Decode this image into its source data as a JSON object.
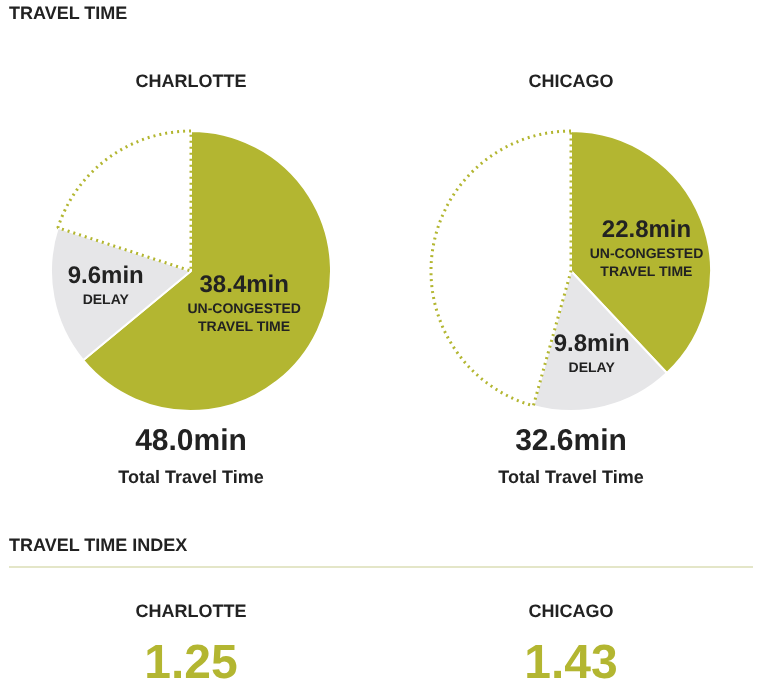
{
  "chart_data": [
    {
      "type": "pie",
      "title": "CHARLOTTE",
      "categories": [
        "UN-CONGESTED TRAVEL TIME",
        "DELAY",
        null
      ],
      "values": [
        38.4,
        9.6,
        12
      ],
      "colors": [
        "#b3b631",
        "#e6e6e8",
        "#ffffff"
      ],
      "value_labels": [
        "38.4min",
        "9.6min",
        null
      ],
      "annotations": [
        "TRAVEL TIME",
        "48.0min",
        "Total Travel Time"
      ]
    },
    {
      "type": "pie",
      "title": "CHICAGO",
      "categories": [
        "UN-CONGESTED TRAVEL TIME",
        "DELAY",
        null
      ],
      "values": [
        22.8,
        9.8,
        27.4
      ],
      "colors": [
        "#b3b631",
        "#e6e6e8",
        "#ffffff"
      ],
      "value_labels": [
        "22.8min",
        "9.8min",
        null
      ],
      "annotations": [
        "32.6min",
        "Total Travel Time"
      ]
    },
    {
      "type": "other",
      "title": "TRAVEL TIME INDEX",
      "annotations": [
        "CHARLOTTE",
        "1.25",
        "CHICAGO",
        "1.43"
      ]
    }
  ]
}
